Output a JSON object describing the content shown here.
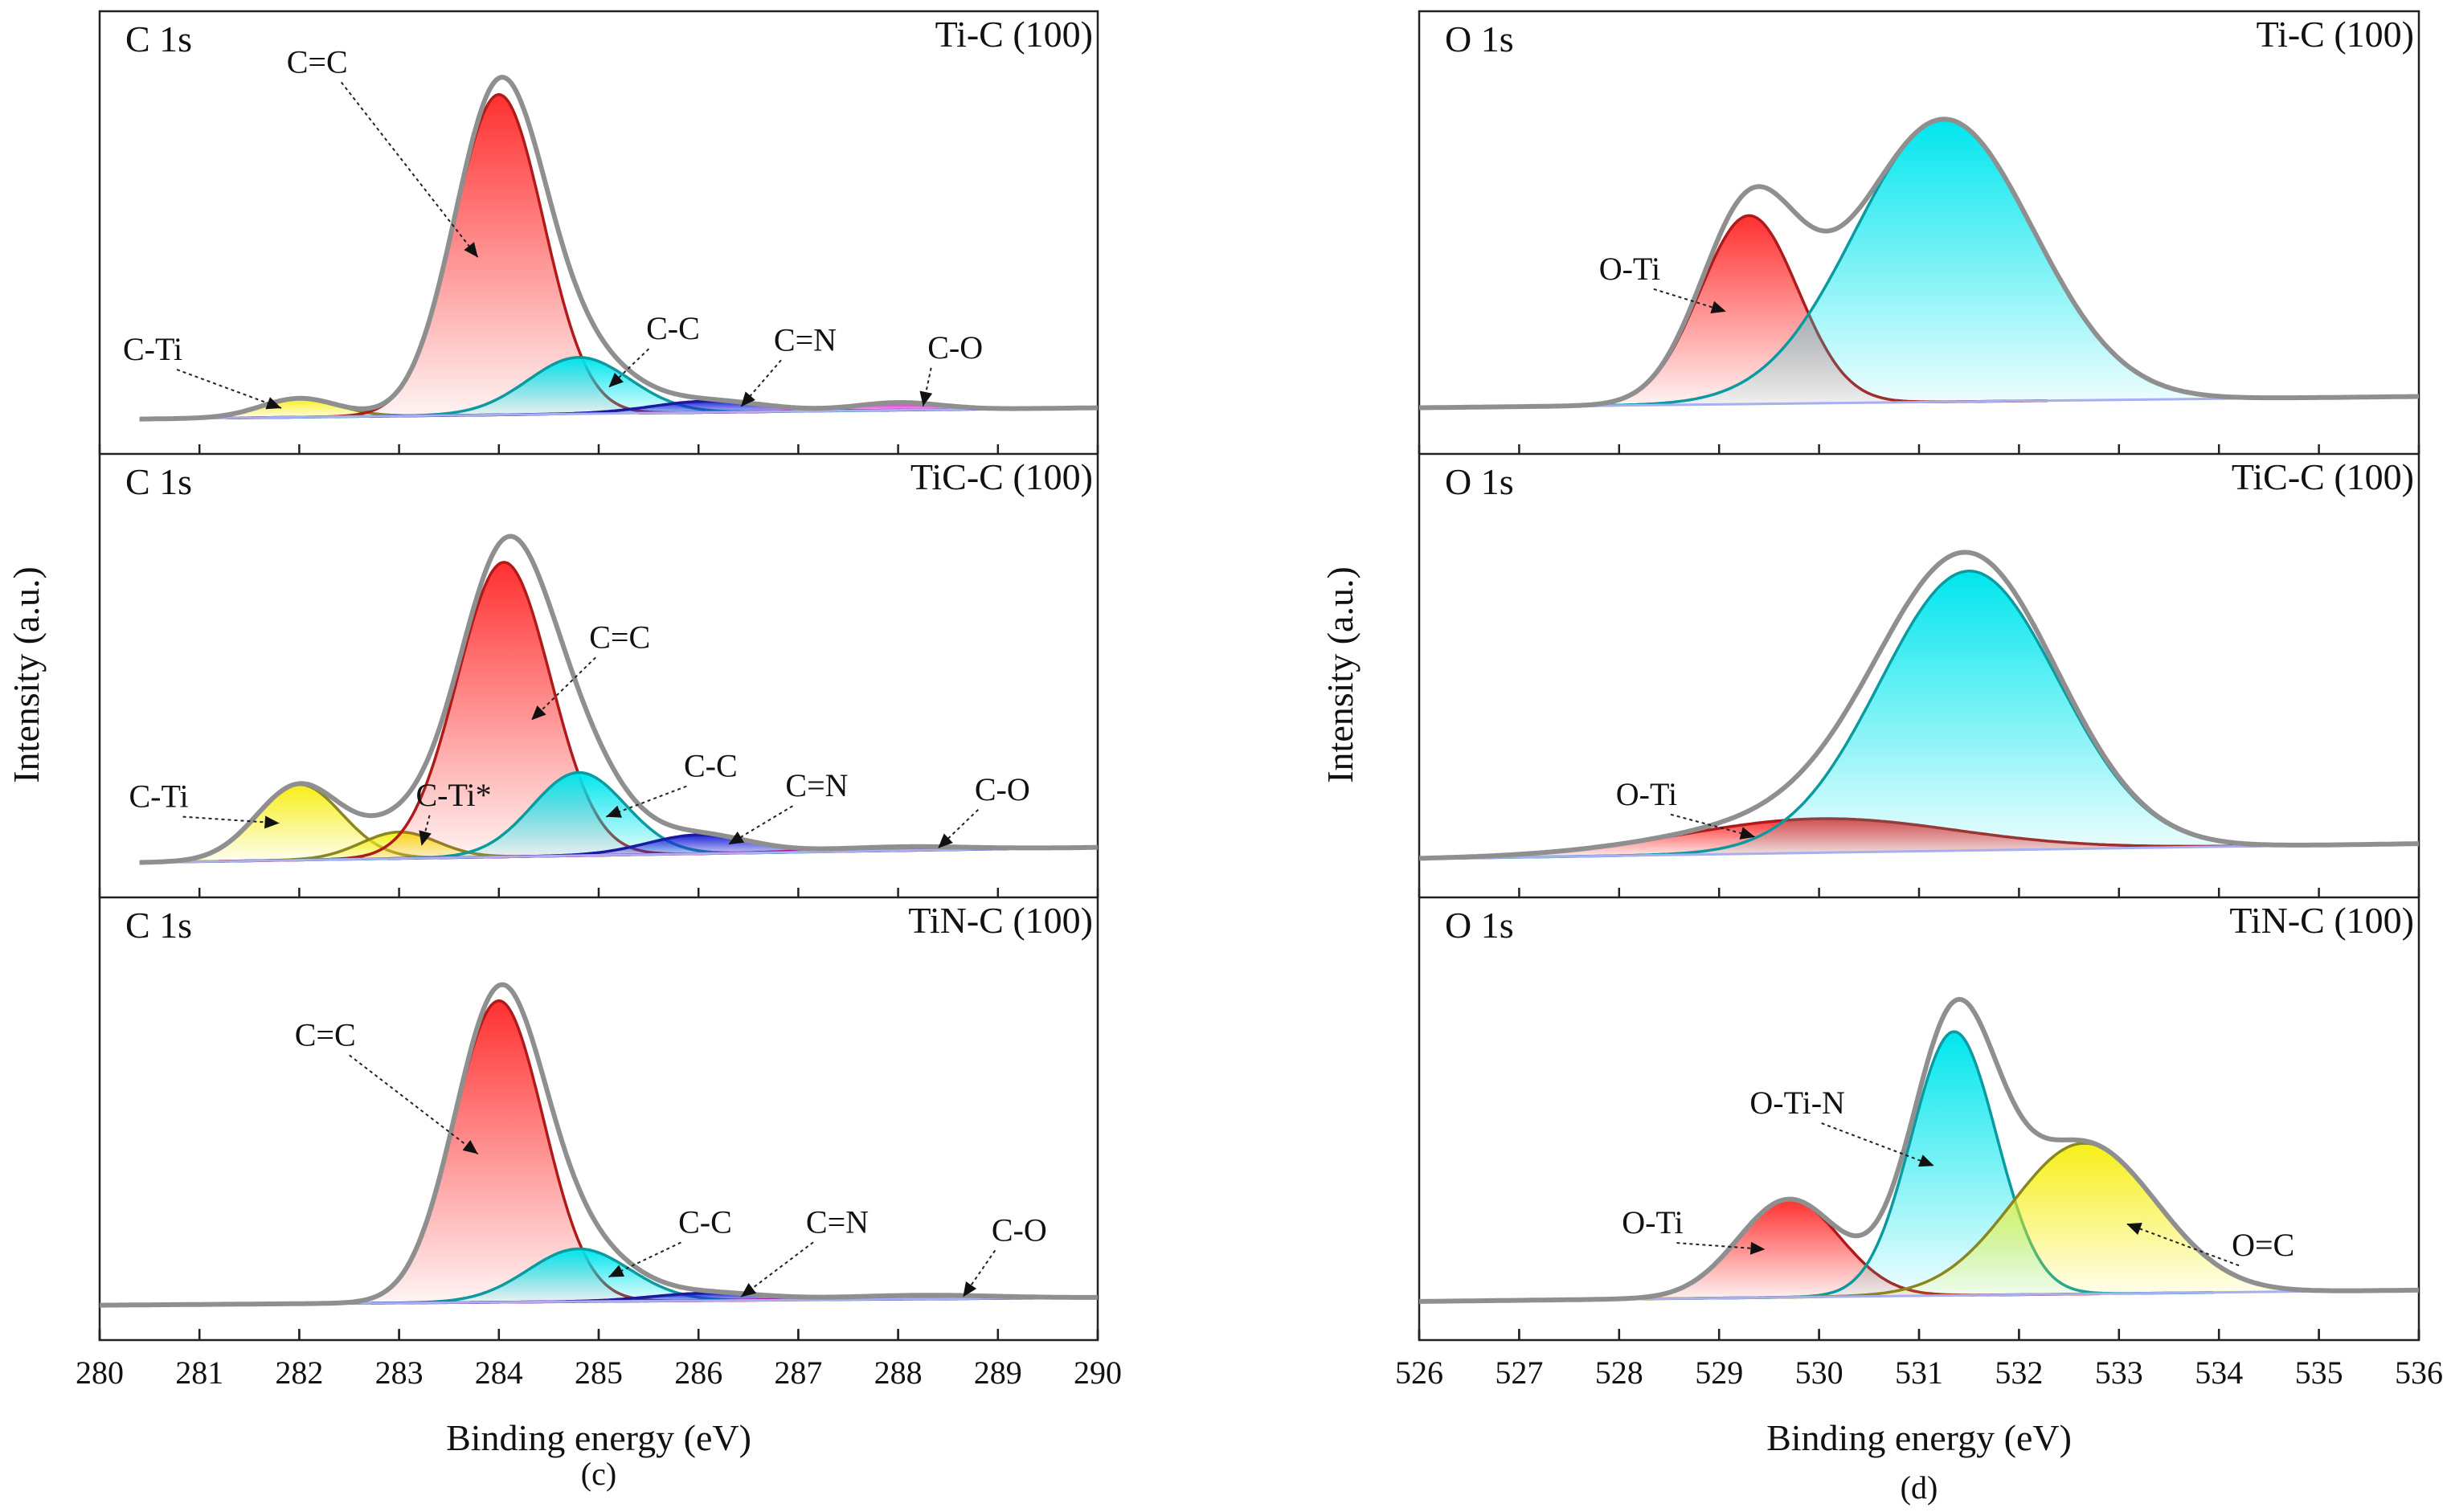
{
  "colors": {
    "red": "#ff3030",
    "red_edge": "#b01a1a",
    "cyan": "#00e6ee",
    "cyan_edge": "#0b9aa0",
    "yellow": "#f7ef16",
    "yellow_edge": "#8b8620",
    "blue": "#1d24d8",
    "blue_edge": "#1a1aa0",
    "magenta": "#e010d0",
    "magenta_edge": "#a010a0",
    "envelope": "#8f8f8f",
    "baseline": "#a8aef0"
  },
  "left": {
    "caption": "(c)",
    "xlabel": "Binding energy (eV)",
    "ylabel": "Intensity (a.u.)",
    "xtick_labels": [
      "280",
      "281",
      "282",
      "283",
      "284",
      "285",
      "286",
      "287",
      "288",
      "289",
      "290"
    ]
  },
  "right": {
    "caption": "(d)",
    "xlabel": "Binding energy (eV)",
    "ylabel": "Intensity (a.u.)",
    "xtick_labels": [
      "526",
      "527",
      "528",
      "529",
      "530",
      "531",
      "532",
      "533",
      "534",
      "535",
      "536"
    ]
  },
  "chart_data": [
    {
      "type": "area",
      "region": "C 1s",
      "sample": "Ti-C (100)",
      "xlabel": "Binding energy (eV)",
      "ylabel": "Intensity (a.u.)",
      "xlim": [
        280,
        290
      ],
      "ylim": [
        0,
        1
      ],
      "baseline": [
        [
          280.4,
          0.02
        ],
        [
          290,
          0.05
        ]
      ],
      "peaks": [
        {
          "name": "C-Ti",
          "center": 282.0,
          "fwhm": 0.9,
          "height": 0.05,
          "color": "yellow"
        },
        {
          "name": "C=C",
          "center": 284.0,
          "fwhm": 1.05,
          "height": 0.85,
          "color": "red"
        },
        {
          "name": "C-C",
          "center": 284.8,
          "fwhm": 1.2,
          "height": 0.15,
          "color": "cyan"
        },
        {
          "name": "C=N",
          "center": 286.1,
          "fwhm": 1.3,
          "height": 0.03,
          "color": "blue"
        },
        {
          "name": "C-O",
          "center": 288.0,
          "fwhm": 1.0,
          "height": 0.02,
          "color": "magenta"
        }
      ],
      "annotations": [
        {
          "text": "C-Ti",
          "peak": "C-Ti"
        },
        {
          "text": "C=C",
          "peak": "C=C"
        },
        {
          "text": "C-C",
          "peak": "C-C"
        },
        {
          "text": "C=N",
          "peak": "C=N"
        },
        {
          "text": "C-O",
          "peak": "C-O"
        }
      ]
    },
    {
      "type": "area",
      "region": "C 1s",
      "sample": "TiC-C (100)",
      "xlabel": "Binding energy (eV)",
      "ylabel": "Intensity (a.u.)",
      "xlim": [
        280,
        290
      ],
      "ylim": [
        0,
        1
      ],
      "baseline": [
        [
          280.4,
          0.02
        ],
        [
          290,
          0.06
        ]
      ],
      "peaks": [
        {
          "name": "C-Ti",
          "center": 282.0,
          "fwhm": 1.0,
          "height": 0.2,
          "color": "yellow"
        },
        {
          "name": "C-Ti*",
          "center": 283.0,
          "fwhm": 0.9,
          "height": 0.07,
          "color": "yellow"
        },
        {
          "name": "C=C",
          "center": 284.05,
          "fwhm": 1.1,
          "height": 0.78,
          "color": "red"
        },
        {
          "name": "C-C",
          "center": 284.8,
          "fwhm": 1.1,
          "height": 0.22,
          "color": "cyan"
        },
        {
          "name": "C=N",
          "center": 286.0,
          "fwhm": 1.2,
          "height": 0.05,
          "color": "blue"
        },
        {
          "name": "C-O",
          "center": 288.0,
          "fwhm": 1.6,
          "height": 0.01,
          "color": "magenta"
        }
      ],
      "annotations": [
        {
          "text": "C-Ti",
          "peak": "C-Ti"
        },
        {
          "text": "C-Ti*",
          "peak": "C-Ti*"
        },
        {
          "text": "C=C",
          "peak": "C=C"
        },
        {
          "text": "C-C",
          "peak": "C-C"
        },
        {
          "text": "C=N",
          "peak": "C=N"
        },
        {
          "text": "C-O",
          "peak": "C-O"
        }
      ]
    },
    {
      "type": "area",
      "region": "C 1s",
      "sample": "TiN-C (100)",
      "xlabel": "Binding energy (eV)",
      "ylabel": "Intensity (a.u.)",
      "xlim": [
        280,
        290
      ],
      "ylim": [
        0,
        1
      ],
      "baseline": [
        [
          280,
          0.02
        ],
        [
          290,
          0.04
        ]
      ],
      "peaks": [
        {
          "name": "C=C",
          "center": 284.0,
          "fwhm": 1.05,
          "height": 0.8,
          "color": "red"
        },
        {
          "name": "C-C",
          "center": 284.8,
          "fwhm": 1.2,
          "height": 0.14,
          "color": "cyan"
        },
        {
          "name": "C=N",
          "center": 286.1,
          "fwhm": 1.3,
          "height": 0.02,
          "color": "blue"
        },
        {
          "name": "C-O",
          "center": 288.2,
          "fwhm": 1.8,
          "height": 0.01,
          "color": "magenta"
        }
      ],
      "annotations": [
        {
          "text": "C=C",
          "peak": "C=C"
        },
        {
          "text": "C-C",
          "peak": "C-C"
        },
        {
          "text": "C=N",
          "peak": "C=N"
        },
        {
          "text": "C-O",
          "peak": "C-O"
        }
      ]
    },
    {
      "type": "area",
      "region": "O 1s",
      "sample": "Ti-C (100)",
      "xlabel": "Binding energy (eV)",
      "ylabel": "Intensity (a.u.)",
      "xlim": [
        526,
        536
      ],
      "ylim": [
        0,
        1
      ],
      "baseline": [
        [
          526,
          0.05
        ],
        [
          536,
          0.08
        ]
      ],
      "peaks": [
        {
          "name": "O-Ti",
          "center": 529.3,
          "fwhm": 1.15,
          "height": 0.5,
          "color": "red"
        },
        {
          "name": "",
          "center": 531.25,
          "fwhm": 2.1,
          "height": 0.75,
          "color": "cyan"
        }
      ],
      "annotations": [
        {
          "text": "O-Ti",
          "peak": "O-Ti"
        }
      ]
    },
    {
      "type": "area",
      "region": "O 1s",
      "sample": "TiC-C (100)",
      "xlabel": "Binding energy (eV)",
      "ylabel": "Intensity (a.u.)",
      "xlim": [
        526,
        536
      ],
      "ylim": [
        0,
        1
      ],
      "baseline": [
        [
          526,
          0.03
        ],
        [
          536,
          0.07
        ]
      ],
      "peaks": [
        {
          "name": "O-Ti",
          "center": 530.0,
          "fwhm": 3.2,
          "height": 0.09,
          "color": "red"
        },
        {
          "name": "",
          "center": 531.5,
          "fwhm": 2.1,
          "height": 0.74,
          "color": "cyan"
        }
      ],
      "annotations": [
        {
          "text": "O-Ti",
          "peak": "O-Ti"
        }
      ]
    },
    {
      "type": "area",
      "region": "O 1s",
      "sample": "TiN-C (100)",
      "xlabel": "Binding energy (eV)",
      "ylabel": "Intensity (a.u.)",
      "xlim": [
        526,
        536
      ],
      "ylim": [
        0,
        1
      ],
      "baseline": [
        [
          526,
          0.03
        ],
        [
          536,
          0.06
        ]
      ],
      "peaks": [
        {
          "name": "O-Ti",
          "center": 529.7,
          "fwhm": 1.2,
          "height": 0.26,
          "color": "red"
        },
        {
          "name": "O-Ti-N",
          "center": 531.35,
          "fwhm": 1.0,
          "height": 0.7,
          "color": "cyan"
        },
        {
          "name": "O=C",
          "center": 532.65,
          "fwhm": 1.7,
          "height": 0.4,
          "color": "yellow"
        }
      ],
      "annotations": [
        {
          "text": "O-Ti",
          "peak": "O-Ti"
        },
        {
          "text": "O-Ti-N",
          "peak": "O-Ti-N"
        },
        {
          "text": "O=C",
          "peak": "O=C"
        }
      ]
    }
  ]
}
